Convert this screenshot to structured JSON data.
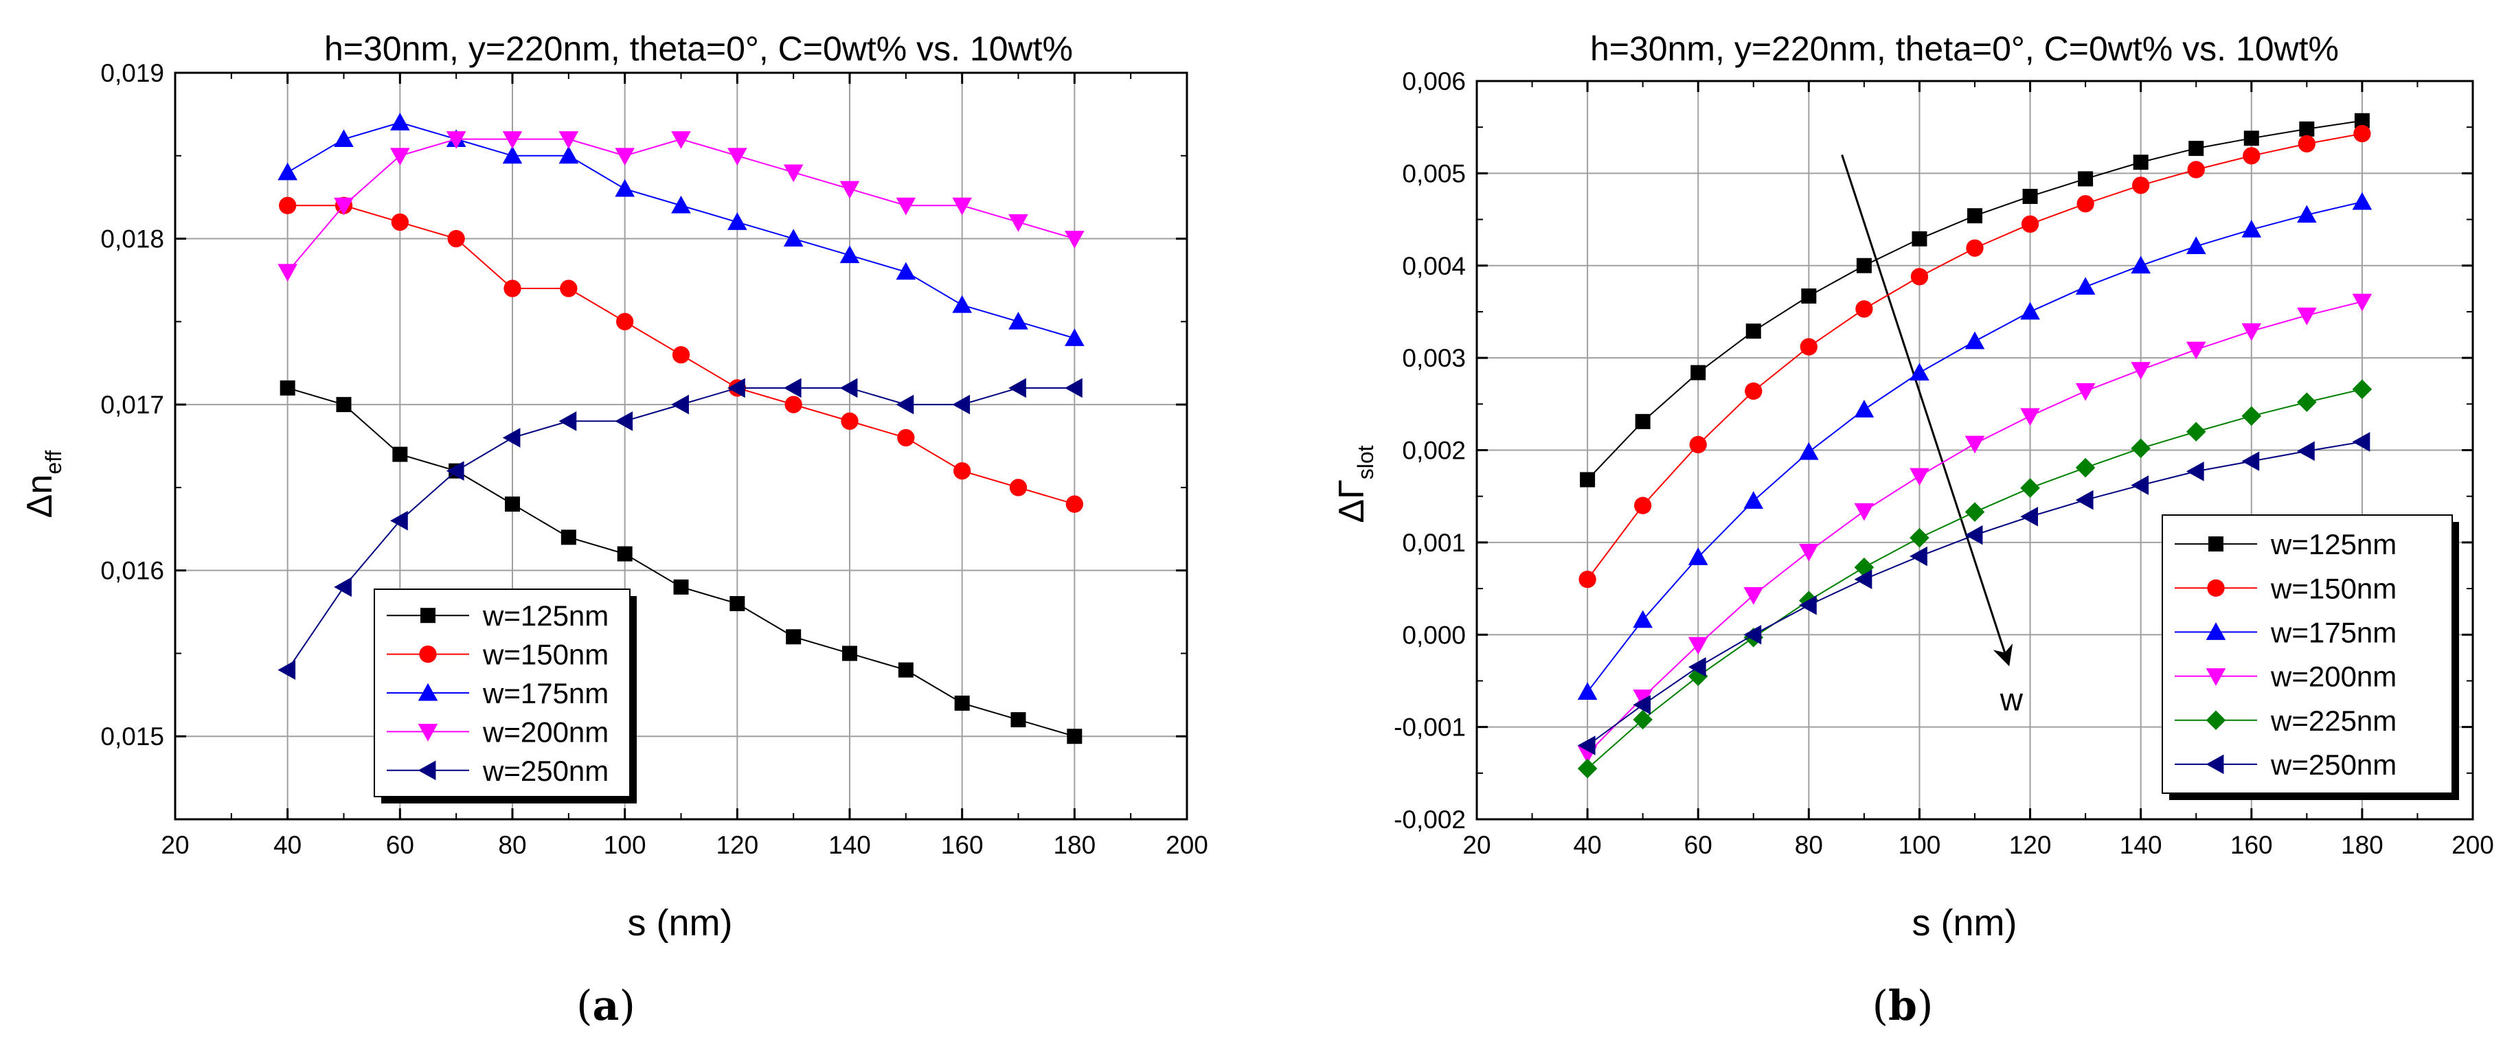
{
  "chart_data": [
    {
      "type": "line",
      "panel_label": "a",
      "title": "h=30nm, y=220nm, theta=0°, C=0wt% vs. 10wt%",
      "xlabel": "s (nm)",
      "ylabel_symbol": "Δn",
      "ylabel_sub": "eff",
      "xlim": [
        20,
        200
      ],
      "ylim": [
        0.0145,
        0.019
      ],
      "xticks": [
        20,
        40,
        60,
        80,
        100,
        120,
        140,
        160,
        180,
        200
      ],
      "yticks": [
        0.015,
        0.016,
        0.017,
        0.018,
        0.019
      ],
      "ytick_labels": [
        "0,015",
        "0,016",
        "0,017",
        "0,018",
        "0,019"
      ],
      "grid": true,
      "legend_position": "bottom-center",
      "x": [
        40,
        50,
        60,
        70,
        80,
        90,
        100,
        110,
        120,
        130,
        140,
        150,
        160,
        170,
        180
      ],
      "series": [
        {
          "name": "w=125nm",
          "color": "#000000",
          "marker": "square",
          "values": [
            0.0171,
            0.017,
            0.0167,
            0.0166,
            0.0164,
            0.0162,
            0.0161,
            0.0159,
            0.0158,
            0.0156,
            0.0155,
            0.0154,
            0.0152,
            0.0151,
            0.015
          ]
        },
        {
          "name": "w=150nm",
          "color": "#ff0000",
          "marker": "circle",
          "values": [
            0.0182,
            0.0182,
            0.0181,
            0.018,
            0.0177,
            0.0177,
            0.0175,
            0.0173,
            0.0171,
            0.017,
            0.0169,
            0.0168,
            0.0166,
            0.0165,
            0.0164
          ]
        },
        {
          "name": "w=175nm",
          "color": "#0000ff",
          "marker": "triangle-up",
          "values": [
            0.0184,
            0.0186,
            0.0187,
            0.0186,
            0.0185,
            0.0185,
            0.0183,
            0.0182,
            0.0181,
            0.018,
            0.0179,
            0.0178,
            0.0176,
            0.0175,
            0.0174
          ]
        },
        {
          "name": "w=200nm",
          "color": "#ff00ff",
          "marker": "triangle-down",
          "values": [
            0.0178,
            0.0182,
            0.0185,
            0.0186,
            0.0186,
            0.0186,
            0.0185,
            0.0186,
            0.0185,
            0.0184,
            0.0183,
            0.0182,
            0.0182,
            0.0181,
            0.018
          ]
        },
        {
          "name": "w=250nm",
          "color": "#000080",
          "marker": "triangle-left",
          "values": [
            0.0154,
            0.0159,
            0.0163,
            0.0166,
            0.0168,
            0.0169,
            0.0169,
            0.017,
            0.0171,
            0.0171,
            0.0171,
            0.017,
            0.017,
            0.0171,
            0.0171
          ]
        }
      ]
    },
    {
      "type": "line",
      "panel_label": "b",
      "title": "h=30nm, y=220nm, theta=0°, C=0wt% vs. 10wt%",
      "xlabel": "s (nm)",
      "ylabel_symbol": "ΔΓ",
      "ylabel_sub": "slot",
      "xlim": [
        20,
        200
      ],
      "ylim": [
        -0.002,
        0.006
      ],
      "xticks": [
        20,
        40,
        60,
        80,
        100,
        120,
        140,
        160,
        180,
        200
      ],
      "yticks": [
        -0.002,
        -0.001,
        0,
        0.001,
        0.002,
        0.003,
        0.004,
        0.005,
        0.006
      ],
      "ytick_labels": [
        "-0,002",
        "-0,001",
        "0,000",
        "0,001",
        "0,002",
        "0,003",
        "0,004",
        "0,005",
        "0,006"
      ],
      "grid": true,
      "legend_position": "bottom-right",
      "annotation": {
        "text": "w",
        "meaning": "arrow shows direction of increasing w",
        "arrow_from": [
          86,
          0.0052
        ],
        "arrow_to": [
          116,
          -0.0003
        ]
      },
      "x": [
        40,
        50,
        60,
        70,
        80,
        90,
        100,
        110,
        120,
        130,
        140,
        150,
        160,
        170,
        180
      ],
      "series": [
        {
          "name": "w=125nm",
          "color": "#000000",
          "marker": "square",
          "values": [
            0.00168,
            0.00231,
            0.00284,
            0.00329,
            0.00367,
            0.004,
            0.00429,
            0.00454,
            0.00475,
            0.00494,
            0.00512,
            0.00527,
            0.00538,
            0.00548,
            0.00557
          ]
        },
        {
          "name": "w=150nm",
          "color": "#ff0000",
          "marker": "circle",
          "values": [
            0.0006,
            0.0014,
            0.00206,
            0.00264,
            0.00312,
            0.00353,
            0.00388,
            0.00419,
            0.00445,
            0.00467,
            0.00487,
            0.00504,
            0.00519,
            0.00532,
            0.00543
          ]
        },
        {
          "name": "w=175nm",
          "color": "#0000ff",
          "marker": "triangle-up",
          "values": [
            -0.00062,
            0.00016,
            0.00084,
            0.00145,
            0.00198,
            0.00244,
            0.00284,
            0.00318,
            0.0035,
            0.00377,
            0.004,
            0.00421,
            0.00439,
            0.00455,
            0.00469
          ]
        },
        {
          "name": "w=200nm",
          "color": "#ff00ff",
          "marker": "triangle-down",
          "values": [
            -0.00129,
            -0.00068,
            -0.00011,
            0.00043,
            0.0009,
            0.00134,
            0.00172,
            0.00207,
            0.00237,
            0.00264,
            0.00287,
            0.00309,
            0.00329,
            0.00346,
            0.00361
          ]
        },
        {
          "name": "w=225nm",
          "color": "#008000",
          "marker": "diamond",
          "values": [
            -0.00145,
            -0.00092,
            -0.00045,
            -3e-05,
            0.00037,
            0.00073,
            0.00105,
            0.00133,
            0.00159,
            0.00181,
            0.00202,
            0.0022,
            0.00237,
            0.00252,
            0.00266
          ]
        },
        {
          "name": "w=250nm",
          "color": "#000080",
          "marker": "triangle-left",
          "values": [
            -0.0012,
            -0.00076,
            -0.00035,
            0.0,
            0.00032,
            0.0006,
            0.00085,
            0.00108,
            0.00128,
            0.00146,
            0.00162,
            0.00177,
            0.00188,
            0.00199,
            0.00209
          ]
        }
      ]
    }
  ]
}
